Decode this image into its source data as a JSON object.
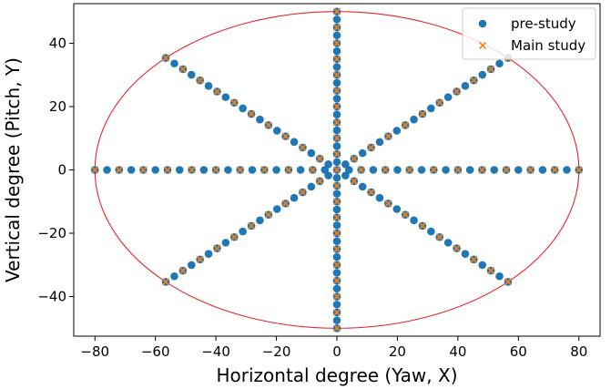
{
  "chart_data": {
    "type": "scatter",
    "xlabel": "Horizontal degree (Yaw, X)",
    "ylabel": "Vertical degree (Pitch, Y)",
    "xlim": [
      -87,
      87
    ],
    "ylim": [
      -52.5,
      52.5
    ],
    "xticks": [
      -80,
      -60,
      -40,
      -20,
      0,
      20,
      40,
      60,
      80
    ],
    "yticks": [
      -40,
      -20,
      0,
      20,
      40
    ],
    "grid": false,
    "legend_position": "top-right",
    "boundary": {
      "shape": "ellipse",
      "center": [
        0,
        0
      ],
      "x_radius": 80,
      "y_radius": 50,
      "color": "#e8242a"
    },
    "series": [
      {
        "name": "pre-study",
        "marker": "circle",
        "color": "#1f77b4",
        "pattern": "radial-lines",
        "angles_deg": [
          0,
          45,
          90,
          135,
          180,
          225,
          270,
          315
        ],
        "fractions": [
          0.05,
          0.1,
          0.15,
          0.2,
          0.25,
          0.3,
          0.35,
          0.4,
          0.45,
          0.5,
          0.55,
          0.6,
          0.65,
          0.7,
          0.75,
          0.8,
          0.85,
          0.9,
          0.95,
          1.0
        ],
        "includes_center": true
      },
      {
        "name": "Main study",
        "marker": "x",
        "color": "#ff7f0e",
        "pattern": "radial-lines",
        "angles_deg": [
          0,
          45,
          90,
          135,
          180,
          225,
          270,
          315
        ],
        "fractions": [
          0.1,
          0.2,
          0.3,
          0.4,
          0.5,
          0.6,
          0.7,
          0.8,
          0.9,
          1.0
        ],
        "includes_center": true
      }
    ]
  }
}
